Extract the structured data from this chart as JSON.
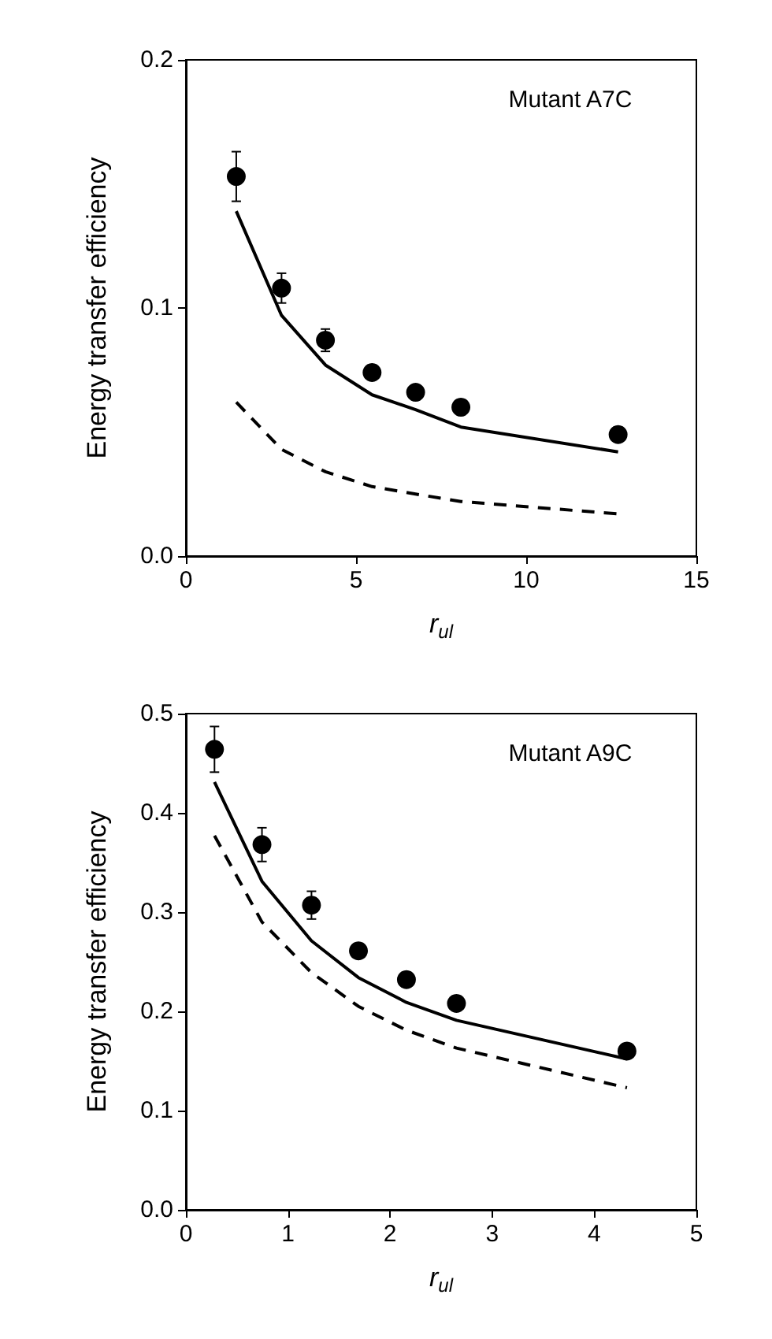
{
  "chart_data": [
    {
      "type": "scatter",
      "xlabel": "r$_{ul}$",
      "ylabel": "Energy transfer efficiency",
      "annotations": [
        "Mutant A7C"
      ],
      "xlim": [
        0,
        15
      ],
      "xticks": [
        0,
        5,
        10,
        15
      ],
      "ylim": [
        0,
        0.2
      ],
      "yticks": [
        {
          "value": 0,
          "label": "0.0"
        },
        0.1,
        0.2
      ],
      "grid": false,
      "series": [
        {
          "marker": "circle",
          "color": "#000000",
          "x": [
            1.48,
            2.81,
            4.1,
            5.47,
            6.75,
            8.08,
            12.7
          ],
          "values": [
            0.153,
            0.108,
            0.087,
            0.074,
            0.066,
            0.06,
            0.049
          ],
          "errors": [
            0.01,
            0.006,
            0.0045,
            null,
            null,
            null,
            null
          ]
        },
        {
          "type": "line",
          "marker": "none",
          "line_style": "solid",
          "color": "#000000",
          "x": [
            1.48,
            2.81,
            4.1,
            5.47,
            6.75,
            8.08,
            12.7
          ],
          "values": [
            0.139,
            0.097,
            0.077,
            0.065,
            0.059,
            0.052,
            0.042
          ]
        },
        {
          "type": "line",
          "marker": "none",
          "line_style": "dashed",
          "color": "#000000",
          "x": [
            1.48,
            2.81,
            4.1,
            5.47,
            6.75,
            8.08,
            12.7
          ],
          "values": [
            0.062,
            0.043,
            0.034,
            0.028,
            0.025,
            0.022,
            0.017
          ]
        }
      ]
    },
    {
      "type": "scatter",
      "xlabel": "r$_{ul}$",
      "ylabel": "Energy transfer efficiency",
      "annotations": [
        "Mutant A9C"
      ],
      "xlim": [
        0,
        5
      ],
      "xticks": [
        0,
        1,
        2,
        3,
        4,
        5
      ],
      "ylim": [
        0,
        0.5
      ],
      "yticks": [
        {
          "value": 0,
          "label": "0.0"
        },
        0.1,
        0.2,
        0.3,
        0.4,
        0.5
      ],
      "grid": false,
      "series": [
        {
          "marker": "circle",
          "color": "#000000",
          "x": [
            0.28,
            0.745,
            1.23,
            1.69,
            2.16,
            2.65,
            4.32
          ],
          "values": [
            0.464,
            0.368,
            0.307,
            0.261,
            0.232,
            0.208,
            0.16
          ],
          "errors": [
            0.023,
            0.017,
            0.014,
            null,
            null,
            null,
            null
          ]
        },
        {
          "type": "line",
          "marker": "none",
          "line_style": "solid",
          "color": "#000000",
          "x": [
            0.28,
            0.745,
            1.23,
            1.69,
            2.16,
            2.65,
            4.32
          ],
          "values": [
            0.431,
            0.331,
            0.271,
            0.234,
            0.209,
            0.191,
            0.152
          ]
        },
        {
          "type": "line",
          "marker": "none",
          "line_style": "dashed",
          "color": "#000000",
          "x": [
            0.28,
            0.745,
            1.23,
            1.69,
            2.16,
            2.65,
            4.32
          ],
          "values": [
            0.377,
            0.29,
            0.239,
            0.205,
            0.181,
            0.163,
            0.123
          ]
        }
      ]
    }
  ]
}
